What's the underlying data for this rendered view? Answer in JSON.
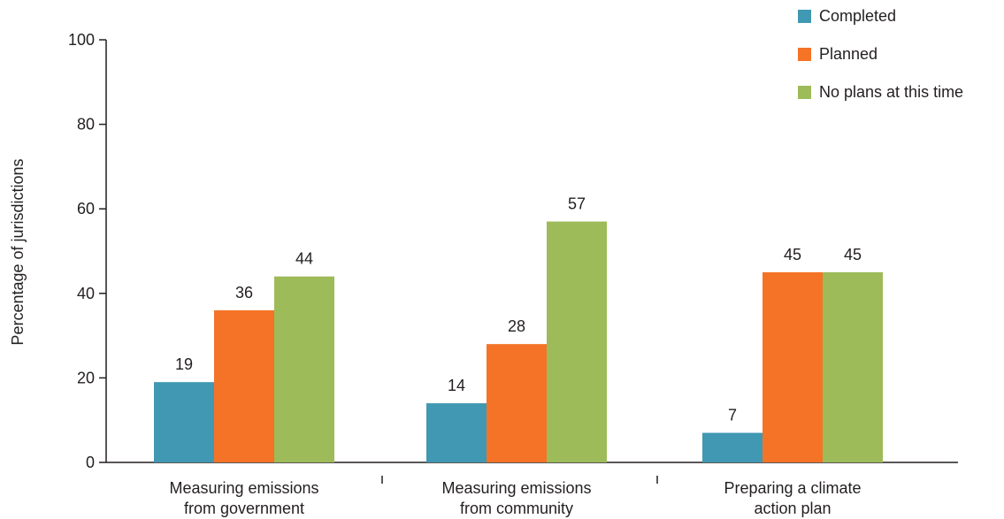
{
  "chart_data": {
    "type": "bar",
    "categories": [
      [
        "Measuring emissions",
        "from government"
      ],
      [
        "Measuring emissions",
        "from community"
      ],
      [
        "Preparing a climate",
        "action plan"
      ]
    ],
    "series": [
      {
        "name": "Completed",
        "color": "#4098b2",
        "values": [
          19,
          14,
          7
        ]
      },
      {
        "name": "Planned",
        "color": "#f47326",
        "values": [
          36,
          28,
          45
        ]
      },
      {
        "name": "No plans at this time",
        "color": "#9dbb59",
        "values": [
          44,
          57,
          45
        ]
      }
    ],
    "ylabel": "Percentage of jurisdictions",
    "ylim": [
      0,
      100
    ],
    "yticks": [
      0,
      20,
      40,
      60,
      80,
      100
    ],
    "grid": false,
    "legend_position": "top-right"
  }
}
